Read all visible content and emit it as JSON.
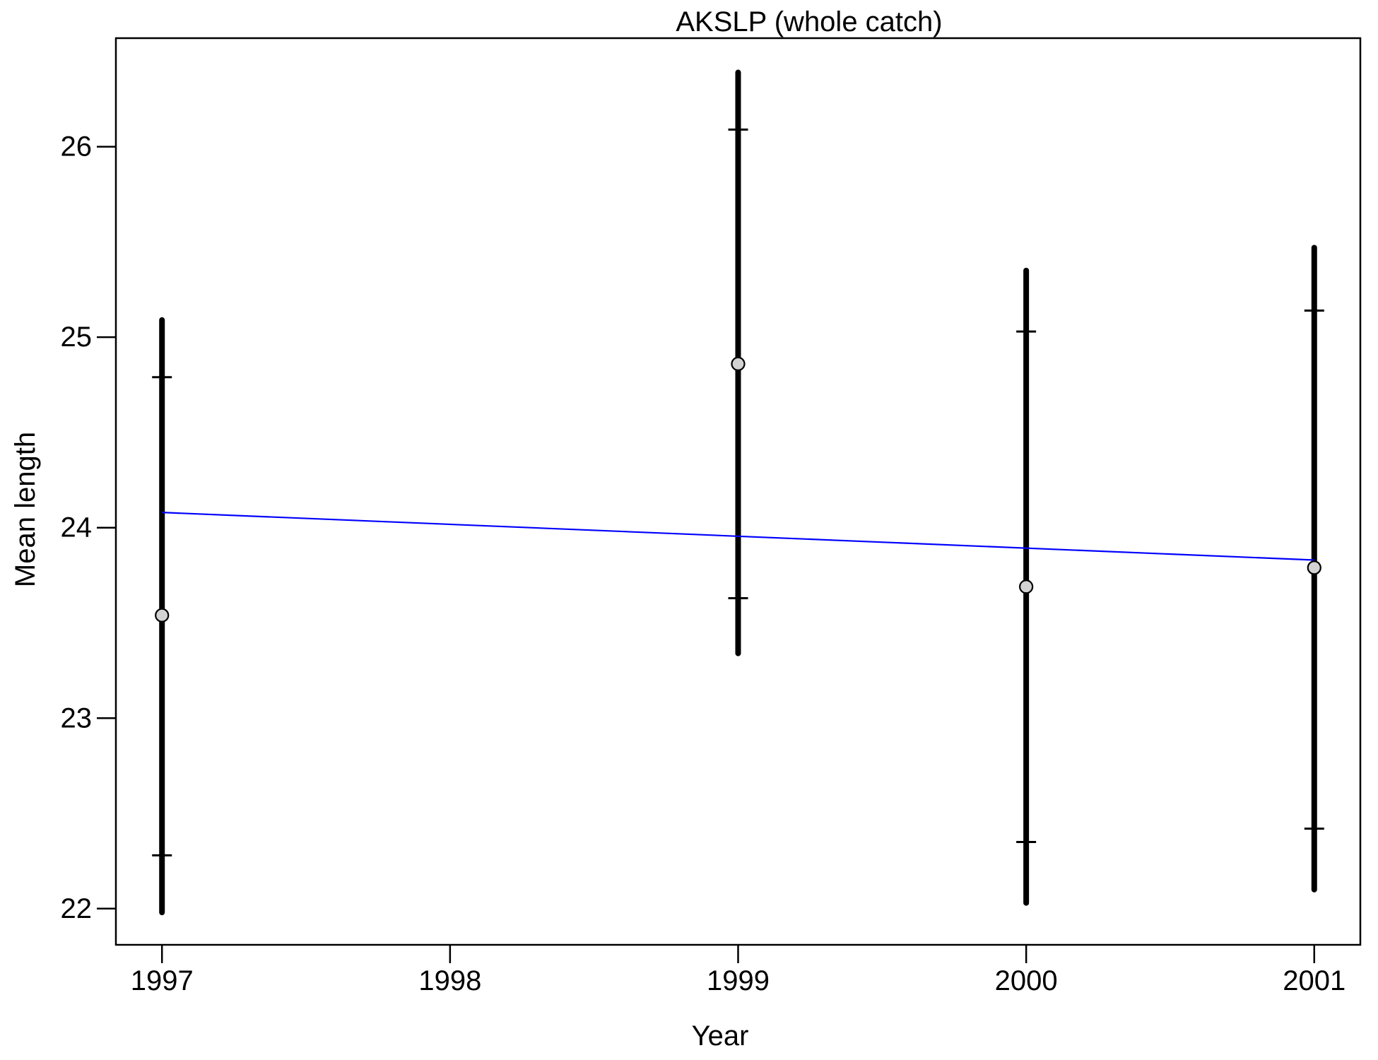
{
  "chart_data": {
    "type": "scatter",
    "title": "AKSLP (whole catch)",
    "xlabel": "Year",
    "ylabel": "Mean length",
    "x_ticks": [
      1997,
      1998,
      1999,
      2000,
      2001
    ],
    "y_ticks": [
      22,
      23,
      24,
      25,
      26
    ],
    "xlim": [
      1996.84,
      2001.16
    ],
    "ylim": [
      21.81,
      26.57
    ],
    "grid": false,
    "points": [
      {
        "x": 1997,
        "mean": 23.54,
        "lower": 21.98,
        "upper": 25.09,
        "inner_lower": 22.28,
        "inner_upper": 24.79
      },
      {
        "x": 1999,
        "mean": 24.86,
        "lower": 23.34,
        "upper": 26.39,
        "inner_lower": 23.63,
        "inner_upper": 26.09
      },
      {
        "x": 2000,
        "mean": 23.69,
        "lower": 22.03,
        "upper": 25.35,
        "inner_lower": 22.35,
        "inner_upper": 25.03
      },
      {
        "x": 2001,
        "mean": 23.79,
        "lower": 22.1,
        "upper": 25.47,
        "inner_lower": 22.42,
        "inner_upper": 25.14
      }
    ],
    "trend_line": {
      "x": [
        1997,
        2001
      ],
      "y": [
        24.08,
        23.83
      ]
    },
    "colors": {
      "error_bar": "#000000",
      "point_fill": "#d3d3d3",
      "trend_line": "#0000ff",
      "frame": "#000000"
    }
  }
}
